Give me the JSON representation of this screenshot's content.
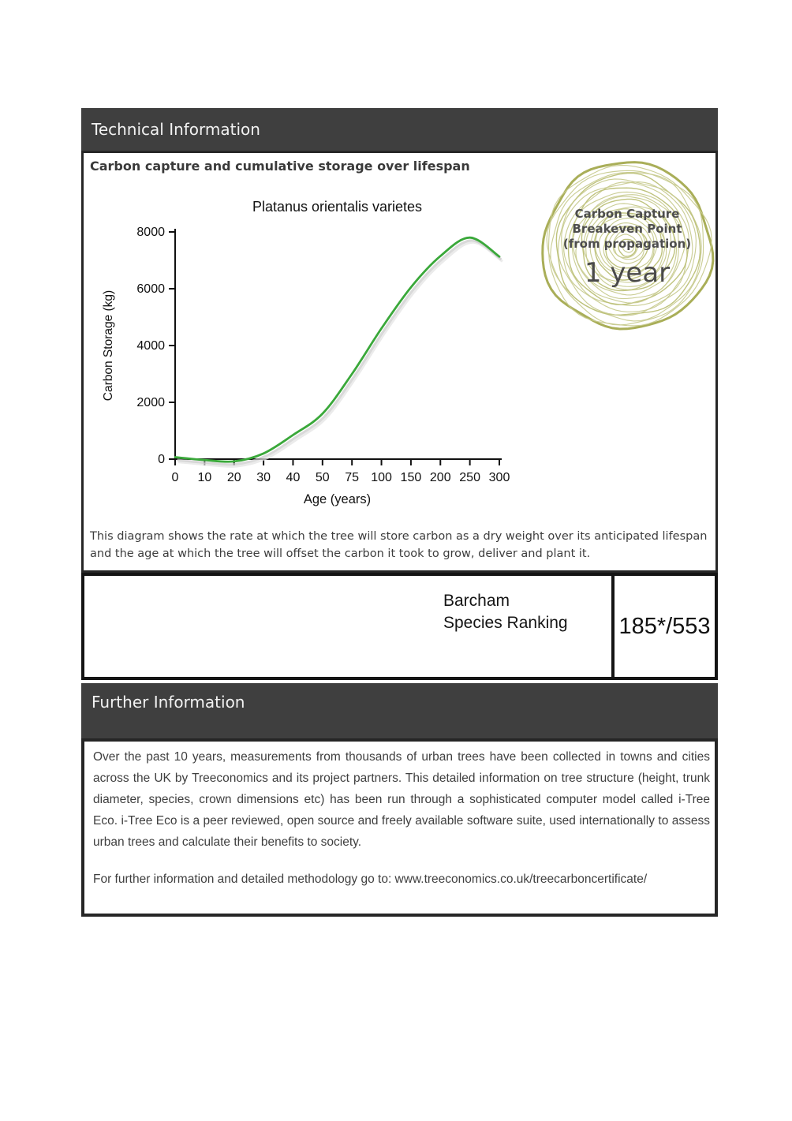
{
  "colors": {
    "band_bg": "#3f3f3f",
    "band_text": "#f2f2f2",
    "border_dark": "#141414",
    "body_text": "#3f3f3f",
    "curve_green": "#3aa83a",
    "curve_shadow": "#c9c9c9",
    "ring_outer": "#a9ae58",
    "ring_inner": "#c8cb90",
    "ring_mid": "#bcc077",
    "badge_text": "#4d4d4d"
  },
  "technical_section": {
    "header": "Technical Information",
    "title": "Carbon capture and cumulative storage over lifespan",
    "description": "This diagram shows the rate at which the tree will store carbon as a dry weight over its anticipated lifespan and the age at which the tree will offset the carbon it took to grow, deliver and plant it."
  },
  "chart_data": {
    "type": "line",
    "title": "Platanus orientalis varietes",
    "xlabel": "Age (years)",
    "ylabel": "Carbon Storage (kg)",
    "categories": [
      "0",
      "10",
      "20",
      "30",
      "40",
      "50",
      "75",
      "100",
      "150",
      "200",
      "250",
      "300"
    ],
    "values": [
      70,
      -30,
      -80,
      200,
      850,
      1600,
      3000,
      4600,
      6050,
      7150,
      7800,
      7130
    ],
    "yticks": [
      0,
      2000,
      4000,
      6000,
      8000
    ],
    "ylim": [
      0,
      8000
    ],
    "grid": false,
    "legend_position": "none",
    "line_color": "#3aa83a"
  },
  "breakeven_badge": {
    "line1": "Carbon Capture",
    "line2": "Breakeven Point",
    "line3": "(from propagation)",
    "value": "1 year"
  },
  "ranking": {
    "label_line1": "Barcham",
    "label_line2": "Species Ranking",
    "value": "185*/553"
  },
  "further_section": {
    "header": "Further Information",
    "paragraph": "Over the past 10 years, measurements from thousands of urban trees have been collected in towns and cities across the UK by Treeconomics and its project partners. This detailed information on tree structure (height, trunk diameter, species, crown dimensions etc) has been run through a sophisticated computer model called i-Tree Eco. i-Tree Eco is a peer reviewed, open source and freely available software suite, used internationally to assess urban trees and calculate their benefits to society.",
    "link_text": "For further information and detailed methodology go to: www.treeconomics.co.uk/treecarboncertificate/"
  }
}
